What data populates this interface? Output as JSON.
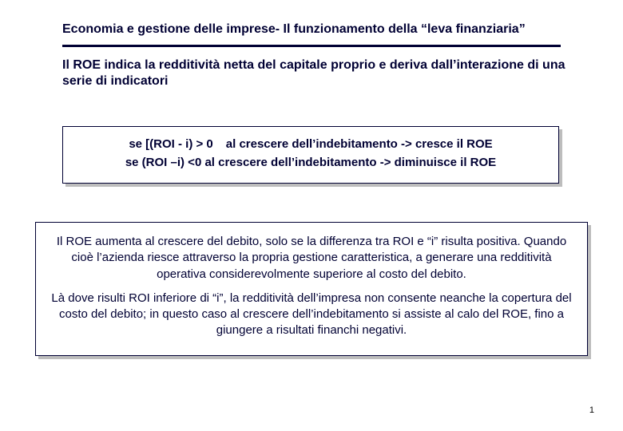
{
  "header": {
    "prefix": "Economia e gestione delle imprese- ",
    "suffix": "Il funzionamento della “leva finanziaria”"
  },
  "subtitle": "Il ROE indica la redditività netta del capitale proprio e deriva dall’interazione di una serie di indicatori",
  "box1": {
    "line1_a": "se [(ROI - i) > 0",
    "line1_b": "al crescere dell’indebitamento  -> cresce il ROE",
    "line2": "se (ROI –i) <0 al crescere dell’indebitamento  -> diminuisce  il ROE"
  },
  "box2": {
    "p1": "Il ROE aumenta al crescere del debito, solo se la differenza tra ROI e “i” risulta positiva. Quando cioè l’azienda riesce attraverso la propria gestione caratteristica, a generare una redditività operativa considerevolmente superiore al costo del debito.",
    "p2": "Là dove risulti ROI inferiore di “i”, la redditività dell’impresa non consente neanche la copertura del costo del debito; in questo caso al crescere dell’indebitamento si assiste al calo del ROE, fino a giungere a risultati financhi negativi."
  },
  "pagenum": "1",
  "colors": {
    "text": "#000033",
    "rule": "#000033",
    "border": "#000033",
    "shadow": "#bdbdbd",
    "background": "#ffffff"
  }
}
